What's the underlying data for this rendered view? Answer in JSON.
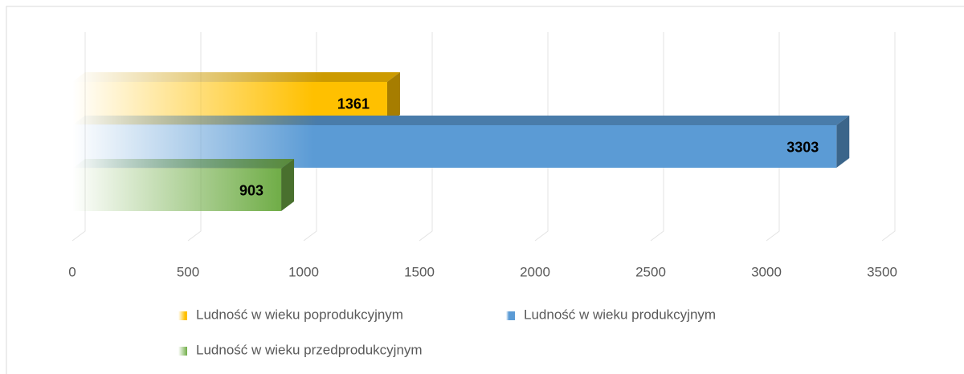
{
  "chart_data": {
    "type": "bar",
    "orientation": "horizontal",
    "categories": [
      null
    ],
    "series": [
      {
        "name": "Ludność w wieku poprodukcyjnym",
        "color": "#ffc000",
        "values": [
          1361
        ]
      },
      {
        "name": "Ludność w wieku produkcyjnym",
        "color": "#5b9bd5",
        "values": [
          3303
        ]
      },
      {
        "name": "Ludność w wieku przedprodukcyjnym",
        "color": "#70ad47",
        "values": [
          903
        ]
      }
    ],
    "xlim": [
      0,
      3500
    ],
    "xticks": [
      0,
      500,
      1000,
      1500,
      2000,
      2500,
      3000,
      3500
    ],
    "grid": true,
    "legend": "bottom"
  }
}
